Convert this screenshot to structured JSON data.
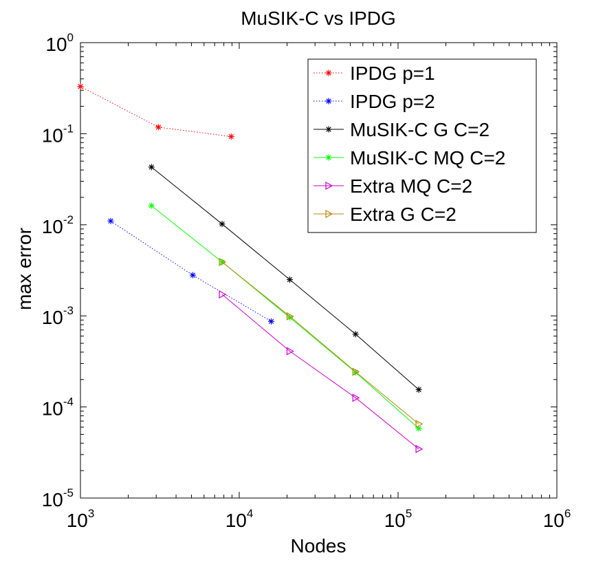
{
  "chart_data": {
    "type": "line",
    "title": "MuSIK-C vs IPDG",
    "xlabel": "Nodes",
    "ylabel": "max error",
    "xscale": "log",
    "yscale": "log",
    "xlim": [
      1000,
      1000000
    ],
    "ylim": [
      1e-05,
      1
    ],
    "x_ticks": [
      {
        "value": 1000,
        "base": "10",
        "exp": "3"
      },
      {
        "value": 10000,
        "base": "10",
        "exp": "4"
      },
      {
        "value": 100000,
        "base": "10",
        "exp": "5"
      },
      {
        "value": 1000000,
        "base": "10",
        "exp": "6"
      }
    ],
    "y_ticks": [
      {
        "value": 1,
        "base": "10",
        "exp": "0"
      },
      {
        "value": 0.1,
        "base": "10",
        "exp": "-1"
      },
      {
        "value": 0.01,
        "base": "10",
        "exp": "-2"
      },
      {
        "value": 0.001,
        "base": "10",
        "exp": "-3"
      },
      {
        "value": 0.0001,
        "base": "10",
        "exp": "-4"
      },
      {
        "value": 1e-05,
        "base": "10",
        "exp": "-5"
      }
    ],
    "grid": false,
    "legend_position": "top-right",
    "series": [
      {
        "name": "IPDG p=1",
        "color": "#ff0000",
        "style": "dotted",
        "marker": "star",
        "x": [
          1000,
          3100,
          8900
        ],
        "y": [
          0.33,
          0.118,
          0.093
        ]
      },
      {
        "name": "IPDG p=2",
        "color": "#0000ff",
        "style": "dotted",
        "marker": "star",
        "x": [
          1550,
          5100,
          15900
        ],
        "y": [
          0.011,
          0.0028,
          0.00087
        ]
      },
      {
        "name": "MuSIK-C G C=2",
        "color": "#000000",
        "style": "solid",
        "marker": "star",
        "x": [
          2800,
          7800,
          20800,
          54000,
          135000
        ],
        "y": [
          0.043,
          0.0102,
          0.0025,
          0.00063,
          0.000155
        ]
      },
      {
        "name": "MuSIK-C MQ C=2",
        "color": "#00ff00",
        "style": "solid",
        "marker": "star",
        "x": [
          2800,
          7800,
          20800,
          54000,
          135000
        ],
        "y": [
          0.0162,
          0.0039,
          0.00096,
          0.00024,
          5.8e-05
        ]
      },
      {
        "name": "Extra MQ C=2",
        "color": "#cc00cc",
        "style": "solid",
        "marker": "triangle-right",
        "x": [
          7800,
          20800,
          54000,
          135000
        ],
        "y": [
          0.00172,
          0.00041,
          0.000126,
          3.45e-05
        ]
      },
      {
        "name": "Extra G C=2",
        "color": "#b8860b",
        "style": "solid",
        "marker": "triangle-right",
        "x": [
          7800,
          20800,
          54000,
          135000
        ],
        "y": [
          0.0039,
          0.00099,
          0.000243,
          6.5e-05
        ]
      }
    ]
  }
}
